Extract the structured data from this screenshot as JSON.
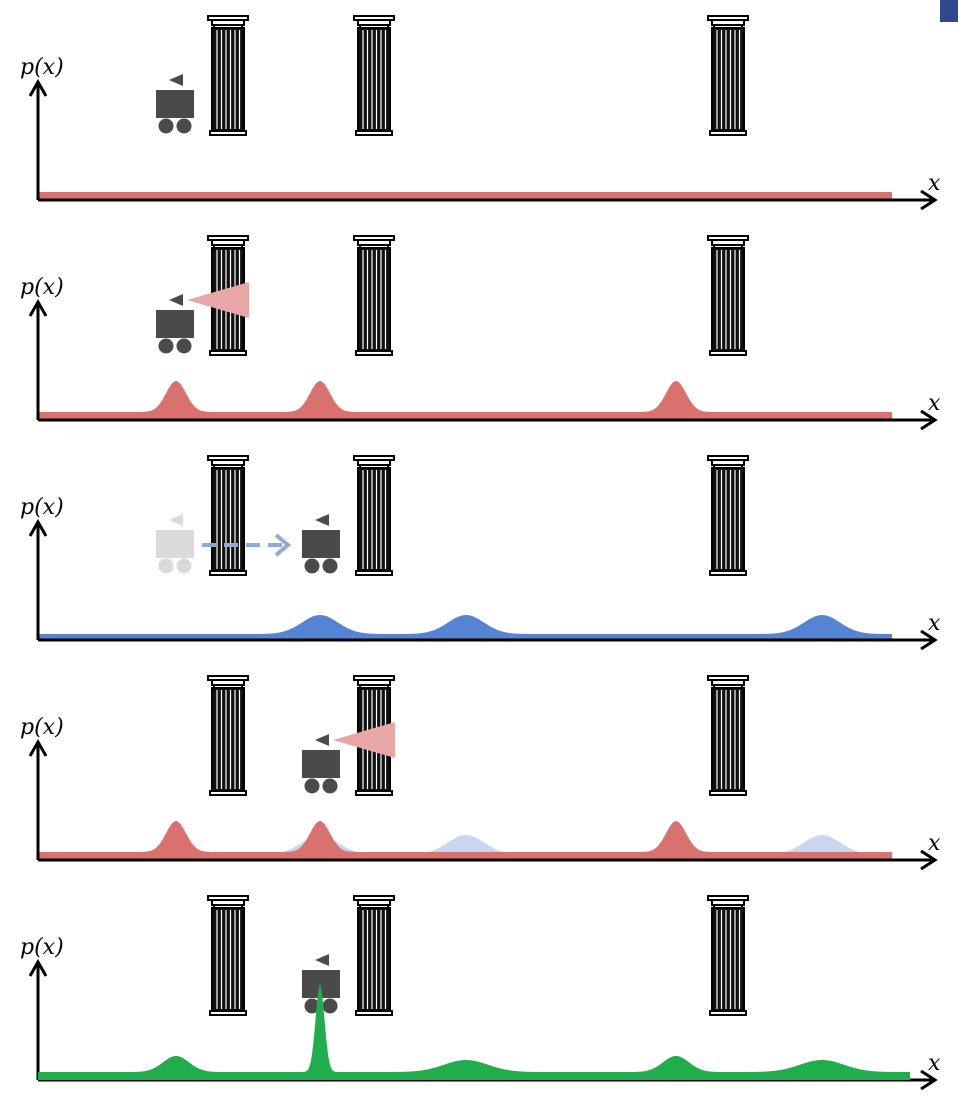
{
  "axis_labels": {
    "y": "p(x)",
    "x": "x"
  },
  "colors": {
    "measurement": "#d9726f",
    "motion": "#5585d2",
    "motion_light": "#c8d6ef",
    "posterior": "#20ad4c",
    "robot": "#4a4a4a",
    "robot_ghost": "#dadada",
    "sensor_cone": "#e8a7a5",
    "move_arrow": "#8eaadc",
    "corner_mark": "#2f4a8c"
  },
  "icons": [
    "column-icon",
    "robot-icon",
    "sensor-cone-icon",
    "motion-arrow-icon"
  ],
  "panels": [
    {
      "name": "initial-uniform-belief",
      "curve": "uniform",
      "robot_at": "column-1-left",
      "sensor": false
    },
    {
      "name": "first-measurement",
      "curve": "peaks-at-columns",
      "robot_at": "column-1-left",
      "sensor": true
    },
    {
      "name": "motion-update",
      "curve": "shifted-peaks",
      "robot_at": "column-2-left",
      "sensor": false,
      "ghost_robot": true
    },
    {
      "name": "second-measurement",
      "curve": "peaks-at-columns",
      "robot_at": "column-2-left",
      "sensor": true
    },
    {
      "name": "posterior-belief",
      "curve": "sharp-peak-at-column-2",
      "robot_at": "column-2-left",
      "sensor": false
    }
  ]
}
